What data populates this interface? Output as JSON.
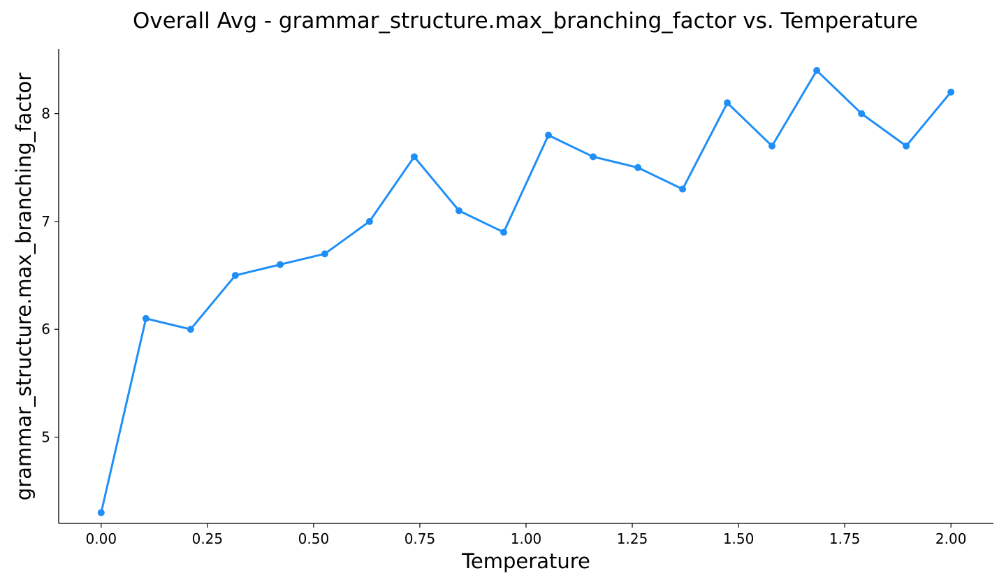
{
  "chart_data": {
    "type": "line",
    "title": "Overall Avg - grammar_structure.max_branching_factor vs. Temperature",
    "xlabel": "Temperature",
    "ylabel": "grammar_structure.max_branching_factor",
    "xlim": [
      -0.1,
      2.1
    ],
    "ylim": [
      4.2,
      8.6
    ],
    "xticks": [
      0.0,
      0.25,
      0.5,
      0.75,
      1.0,
      1.25,
      1.5,
      1.75,
      2.0
    ],
    "xtick_labels": [
      "0.00",
      "0.25",
      "0.50",
      "0.75",
      "1.00",
      "1.25",
      "1.50",
      "1.75",
      "2.00"
    ],
    "yticks": [
      5,
      6,
      7,
      8
    ],
    "ytick_labels": [
      "5",
      "6",
      "7",
      "8"
    ],
    "grid": false,
    "line_color": "#1f8ff7",
    "series": [
      {
        "x": [
          0.0,
          0.1053,
          0.2105,
          0.3158,
          0.4211,
          0.5263,
          0.6316,
          0.7368,
          0.8421,
          0.9474,
          1.0526,
          1.1579,
          1.2632,
          1.3684,
          1.4737,
          1.5789,
          1.6842,
          1.7895,
          1.8947,
          2.0
        ],
        "y": [
          4.3,
          6.1,
          6.0,
          6.5,
          6.6,
          6.7,
          7.0,
          7.6,
          7.1,
          6.9,
          7.8,
          7.6,
          7.5,
          7.3,
          8.1,
          7.7,
          8.4,
          8.0,
          7.7,
          8.2
        ]
      }
    ]
  }
}
